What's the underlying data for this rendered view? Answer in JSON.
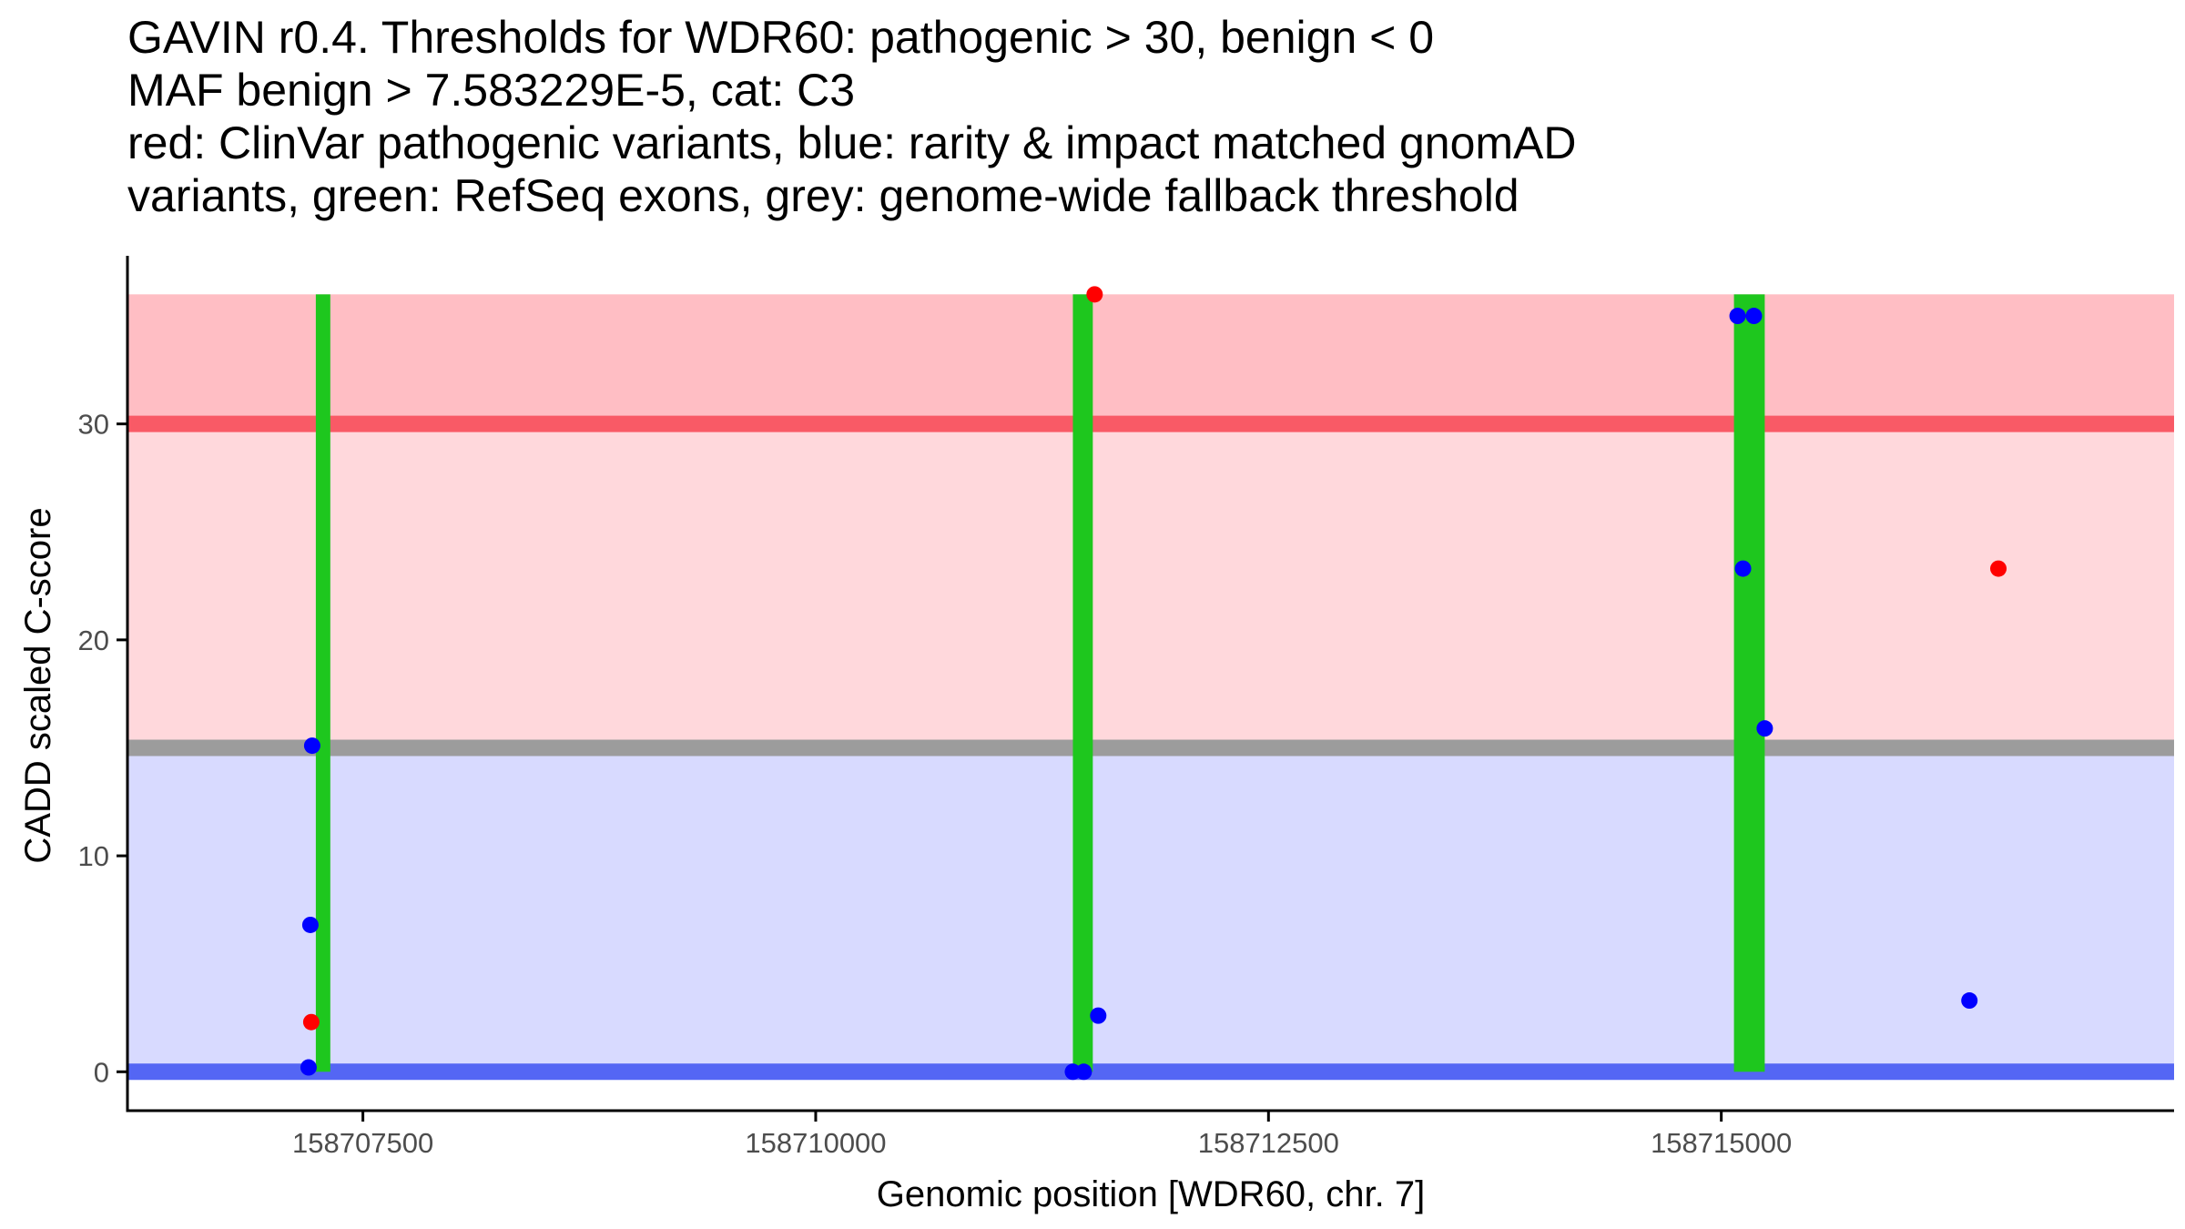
{
  "title_lines": [
    "GAVIN r0.4. Thresholds for WDR60: pathogenic > 30, benign < 0",
    "MAF benign > 7.583229E-5, cat: C3",
    "red: ClinVar pathogenic variants, blue: rarity & impact matched gnomAD",
    "variants, green: RefSeq exons, grey: genome-wide fallback threshold"
  ],
  "chart_data": {
    "type": "scatter",
    "xlabel": "Genomic position [WDR60, chr. 7]",
    "ylabel": "CADD scaled C-score",
    "xlim": [
      158706200,
      158717500
    ],
    "ylim": [
      -1.8,
      37.7
    ],
    "x_ticks": [
      158707500,
      158710000,
      158712500,
      158715000
    ],
    "x_tick_labels": [
      "158707500",
      "158710000",
      "158712500",
      "158715000"
    ],
    "y_ticks": [
      0,
      10,
      20,
      30
    ],
    "y_tick_labels": [
      "0",
      "10",
      "20",
      "30"
    ],
    "grid": false,
    "bands": [
      {
        "name": "pathogenic-zone",
        "y_from": 30,
        "y_to": 36,
        "color": "#ffbec4"
      },
      {
        "name": "gray-zone",
        "y_from": 15,
        "y_to": 30,
        "color": "#ffd8dc"
      },
      {
        "name": "benign-zone",
        "y_from": 0,
        "y_to": 15,
        "color": "#d8daff"
      }
    ],
    "threshold_lines": [
      {
        "name": "pathogenic-threshold",
        "y": 30,
        "color": "#f95a66"
      },
      {
        "name": "fallback-threshold",
        "y": 15,
        "color": "#9c9c9c"
      },
      {
        "name": "benign-threshold",
        "y": 0,
        "color": "#5466f4"
      }
    ],
    "exons": [
      {
        "start": 158707240,
        "end": 158707320,
        "y_from": 0,
        "y_to": 36
      },
      {
        "start": 158711420,
        "end": 158711530,
        "y_from": 0,
        "y_to": 36
      },
      {
        "start": 158715070,
        "end": 158715240,
        "y_from": 0,
        "y_to": 36
      }
    ],
    "series": [
      {
        "name": "ClinVar pathogenic variants",
        "color": "#ff0000",
        "points": [
          {
            "x": 158707215,
            "y": 2.3
          },
          {
            "x": 158711540,
            "y": 36
          },
          {
            "x": 158716530,
            "y": 23.3
          }
        ]
      },
      {
        "name": "rarity & impact matched gnomAD variants",
        "color": "#0000ff",
        "points": [
          {
            "x": 158707220,
            "y": 15.1
          },
          {
            "x": 158707210,
            "y": 6.8
          },
          {
            "x": 158707200,
            "y": 0.2
          },
          {
            "x": 158711420,
            "y": 0
          },
          {
            "x": 158711480,
            "y": 0
          },
          {
            "x": 158711560,
            "y": 2.6
          },
          {
            "x": 158715090,
            "y": 35
          },
          {
            "x": 158715180,
            "y": 35
          },
          {
            "x": 158715120,
            "y": 23.3
          },
          {
            "x": 158715240,
            "y": 15.9
          },
          {
            "x": 158716370,
            "y": 3.3
          }
        ]
      }
    ],
    "colors": {
      "exon": "#1ec71e",
      "axis": "#000000",
      "tick_label": "#4d4d4d"
    }
  }
}
